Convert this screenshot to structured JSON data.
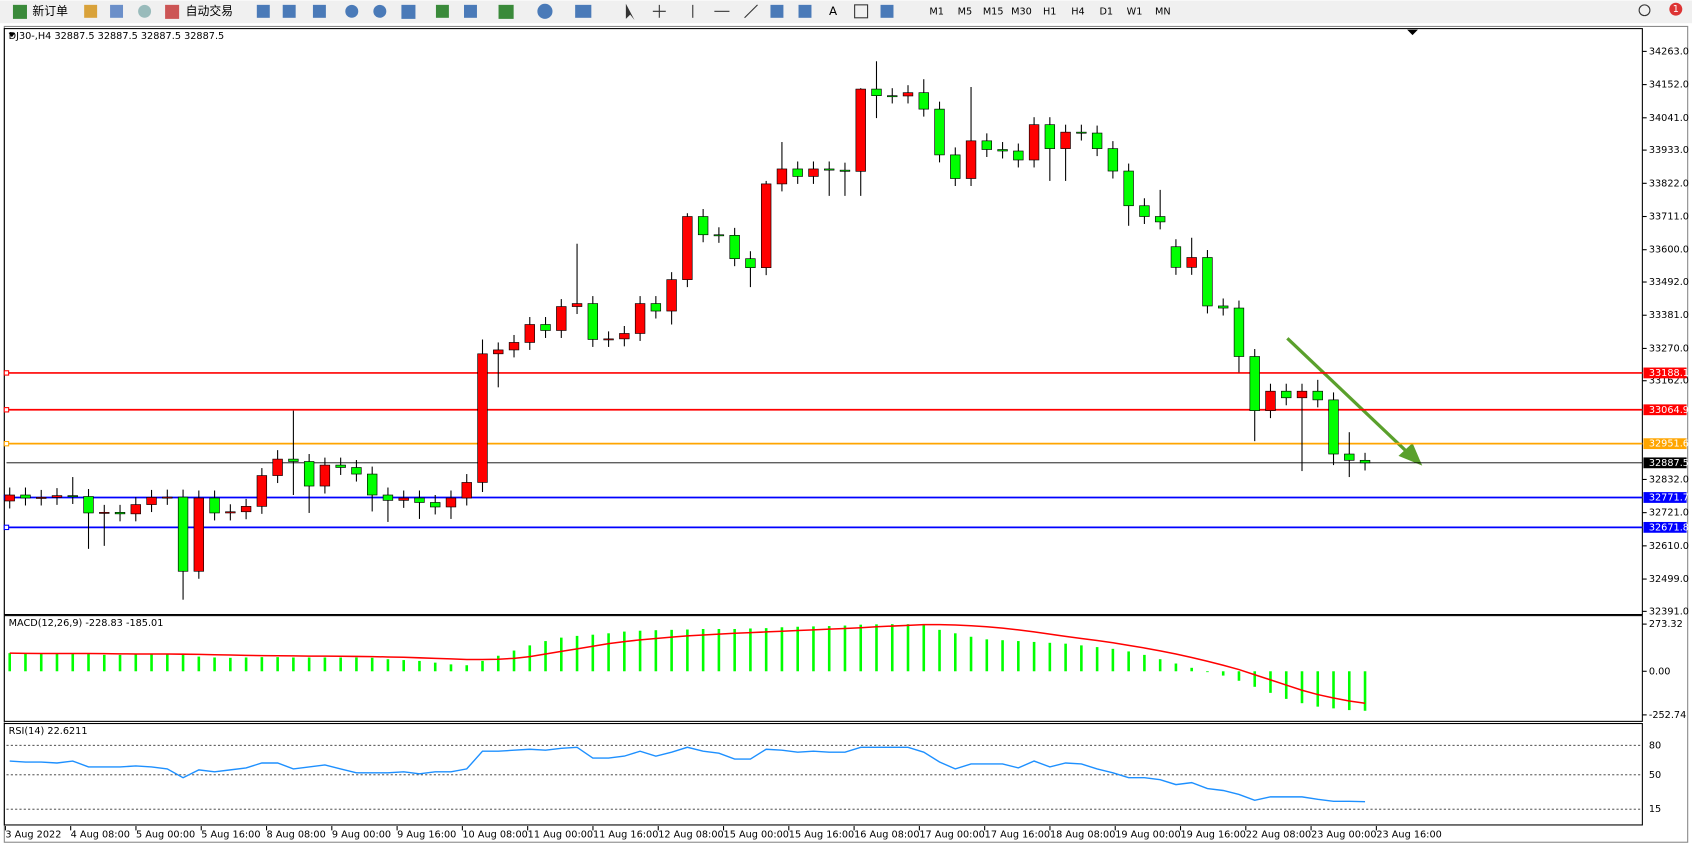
{
  "toolbar": {
    "new_order": "新订单",
    "auto_trading": "自动交易",
    "text_tool": "A",
    "timeframes": [
      "M1",
      "M5",
      "M15",
      "M30",
      "H1",
      "H4",
      "D1",
      "W1",
      "MN"
    ],
    "badge": 1
  },
  "chart_data": [
    {
      "type": "candlestick",
      "title": "DJ30-,H4  32887.5 32887.5 32887.5 32887.5",
      "up_color": "#ff0000",
      "down_color": "#00ff00",
      "open": [
        32760,
        32780,
        32770,
        32772,
        32778,
        32775,
        32720,
        32722,
        32717,
        32748,
        32772,
        32773,
        32525,
        32770,
        32720,
        32724,
        32742,
        32845,
        32900,
        32892,
        32810,
        32880,
        32872,
        32850,
        32780,
        32762,
        32770,
        32755,
        32740,
        32770,
        32822,
        33252,
        33265,
        33290,
        33350,
        33330,
        33410,
        33420,
        33300,
        33302,
        33320,
        33420,
        33395,
        33500,
        33711,
        33650,
        33648,
        33570,
        33540,
        33820,
        33870,
        33845,
        33870,
        33866,
        33862,
        34137,
        34115,
        34114,
        34125,
        34070,
        33917,
        33838,
        33964,
        33935,
        33930,
        33900,
        34018,
        33938,
        33993,
        33990,
        33938,
        33863,
        33747,
        33711,
        33610,
        33541,
        33574,
        33412,
        33405,
        33243,
        33062,
        33127,
        33105,
        33127,
        33098,
        32917,
        32896
      ],
      "high": [
        32805,
        32805,
        32797,
        32803,
        32840,
        32800,
        32747,
        32747,
        32773,
        32797,
        32798,
        32798,
        32795,
        32795,
        32749,
        32767,
        32870,
        32930,
        33062,
        32917,
        32905,
        32905,
        32897,
        32875,
        32805,
        32795,
        32795,
        32780,
        32795,
        32850,
        33300,
        33290,
        33315,
        33375,
        33375,
        33435,
        33620,
        33445,
        33327,
        33345,
        33445,
        33445,
        33525,
        33722,
        33736,
        33675,
        33673,
        33595,
        33830,
        33960,
        33895,
        33895,
        33895,
        33891,
        34140,
        34230,
        34140,
        34150,
        34170,
        34095,
        33942,
        34144,
        33989,
        33960,
        33955,
        34043,
        34043,
        34018,
        34018,
        34015,
        33963,
        33888,
        33772,
        33800,
        33635,
        33640,
        33599,
        33437,
        33430,
        33268,
        33152,
        33152,
        33152,
        33165,
        33123,
        32990,
        32921
      ],
      "low": [
        32735,
        32745,
        32745,
        32747,
        32750,
        32600,
        32610,
        32692,
        32692,
        32723,
        32747,
        32430,
        32500,
        32695,
        32695,
        32699,
        32717,
        32820,
        32780,
        32720,
        32785,
        32847,
        32825,
        32725,
        32690,
        32737,
        32700,
        32715,
        32700,
        32745,
        32790,
        33140,
        33240,
        33265,
        33305,
        33305,
        33385,
        33275,
        33275,
        33277,
        33295,
        33370,
        33350,
        33475,
        33625,
        33623,
        33545,
        33475,
        33515,
        33795,
        33820,
        33820,
        33780,
        33780,
        33780,
        34040,
        34089,
        34089,
        34045,
        33892,
        33813,
        33813,
        33910,
        33905,
        33875,
        33875,
        33830,
        33830,
        33965,
        33913,
        33838,
        33680,
        33686,
        33668,
        33516,
        33516,
        33387,
        33380,
        33190,
        32960,
        33037,
        33080,
        32860,
        33073,
        32880,
        32840,
        32862
      ],
      "close": [
        32780,
        32770,
        32772,
        32778,
        32775,
        32720,
        32722,
        32717,
        32748,
        32772,
        32773,
        32525,
        32770,
        32720,
        32724,
        32742,
        32845,
        32900,
        32892,
        32810,
        32880,
        32872,
        32850,
        32780,
        32762,
        32770,
        32755,
        32740,
        32770,
        32822,
        33252,
        33265,
        33290,
        33350,
        33330,
        33410,
        33420,
        33300,
        33302,
        33320,
        33420,
        33395,
        33500,
        33711,
        33650,
        33648,
        33570,
        33540,
        33820,
        33870,
        33845,
        33870,
        33866,
        33862,
        34137,
        34115,
        34114,
        34125,
        34070,
        33917,
        33838,
        33964,
        33935,
        33930,
        33900,
        34018,
        33938,
        33993,
        33990,
        33938,
        33863,
        33747,
        33711,
        33693,
        33541,
        33574,
        33412,
        33405,
        33243,
        33062,
        33127,
        33105,
        33127,
        33098,
        32917,
        32896,
        32887.5
      ],
      "ylim": [
        32384,
        34332
      ],
      "yticks": [
        {
          "value": 34263,
          "label": "34263.0"
        },
        {
          "value": 34152,
          "label": "34152.0"
        },
        {
          "value": 34041,
          "label": "34041.0"
        },
        {
          "value": 33933,
          "label": "33933.0"
        },
        {
          "value": 33822,
          "label": "33822.0"
        },
        {
          "value": 33711,
          "label": "33711.0"
        },
        {
          "value": 33600,
          "label": "33600.0"
        },
        {
          "value": 33492,
          "label": "33492.0"
        },
        {
          "value": 33381,
          "label": "33381.0"
        },
        {
          "value": 33270,
          "label": "33270.0"
        },
        {
          "value": 33162,
          "label": "33162.0"
        },
        {
          "value": 32832,
          "label": "32832.0"
        },
        {
          "value": 32721,
          "label": "32721.0"
        },
        {
          "value": 32610,
          "label": "32610.0"
        },
        {
          "value": 32499,
          "label": "32499.0"
        },
        {
          "value": 32391,
          "label": "32391.0"
        }
      ],
      "levels": [
        {
          "value": 33188.1,
          "color": "#ff0000"
        },
        {
          "value": 33064.9,
          "color": "#ff0000"
        },
        {
          "value": 32951.6,
          "color": "#ffa500"
        },
        {
          "value": 32887.5,
          "color": "#000000"
        },
        {
          "value": 32771.7,
          "color": "#0000ff"
        },
        {
          "value": 32671.8,
          "color": "#0000ff"
        }
      ],
      "x_labels": [
        "3 Aug 2022",
        "4 Aug 08:00",
        "5 Aug 00:00",
        "5 Aug 16:00",
        "8 Aug 08:00",
        "9 Aug 00:00",
        "9 Aug 16:00",
        "10 Aug 08:00",
        "11 Aug 00:00",
        "11 Aug 16:00",
        "12 Aug 08:00",
        "15 Aug 00:00",
        "15 Aug 16:00",
        "16 Aug 08:00",
        "17 Aug 00:00",
        "17 Aug 16:00",
        "18 Aug 08:00",
        "19 Aug 00:00",
        "19 Aug 16:00",
        "22 Aug 08:00",
        "23 Aug 00:00",
        "23 Aug 16:00"
      ]
    },
    {
      "type": "macd",
      "title": "MACD(12,26,9) -228.83 -185.01",
      "color": "#00ff00",
      "signal_color": "#ff0000",
      "histogram": [
        105,
        100,
        100,
        103,
        105,
        100,
        95,
        95,
        98,
        100,
        102,
        100,
        85,
        80,
        78,
        80,
        82,
        82,
        80,
        80,
        80,
        80,
        80,
        78,
        70,
        65,
        60,
        50,
        40,
        35,
        60,
        90,
        120,
        150,
        175,
        195,
        205,
        212,
        220,
        230,
        235,
        238,
        240,
        242,
        245,
        245,
        245,
        248,
        250,
        255,
        258,
        260,
        262,
        265,
        270,
        272,
        273,
        273,
        270,
        240,
        220,
        200,
        185,
        180,
        175,
        170,
        165,
        160,
        150,
        140,
        130,
        115,
        95,
        70,
        45,
        20,
        -5,
        -25,
        -55,
        -90,
        -125,
        -160,
        -185,
        -205,
        -215,
        -225,
        -228.83
      ],
      "signal": [
        105,
        104,
        103,
        103,
        103,
        103,
        102,
        101,
        100,
        100,
        100,
        99,
        98,
        96,
        94,
        92,
        91,
        90,
        89,
        88,
        88,
        87,
        86,
        85,
        83,
        81,
        78,
        75,
        72,
        68,
        68,
        70,
        75,
        85,
        100,
        115,
        130,
        145,
        160,
        172,
        182,
        190,
        198,
        205,
        210,
        215,
        220,
        224,
        228,
        232,
        236,
        240,
        244,
        248,
        252,
        258,
        262,
        266,
        270,
        270,
        268,
        264,
        258,
        250,
        240,
        228,
        215,
        202,
        190,
        178,
        165,
        150,
        135,
        118,
        100,
        80,
        58,
        35,
        10,
        -20,
        -50,
        -80,
        -110,
        -135,
        -155,
        -172,
        -185.01
      ],
      "ylim": [
        -284,
        310
      ],
      "yticks": [
        273.32,
        {
          "value": 0,
          "label": "0.00"
        },
        -252.74
      ]
    },
    {
      "type": "rsi",
      "title": "RSI(14) 22.6211",
      "color": "#1e90ff",
      "values": [
        64,
        63,
        63,
        62,
        64,
        58,
        58,
        58,
        59,
        58,
        56,
        47,
        55,
        53,
        55,
        57,
        62,
        62,
        56,
        58,
        60,
        56,
        52,
        52,
        52,
        53,
        51,
        53,
        53,
        56,
        74,
        74,
        75,
        76,
        75,
        77,
        78,
        67,
        67,
        69,
        74,
        69,
        73,
        78,
        74,
        72,
        66,
        66,
        76,
        75,
        73,
        74,
        73,
        73,
        78,
        78,
        78,
        78,
        73,
        63,
        56,
        61,
        61,
        61,
        57,
        64,
        58,
        62,
        61,
        56,
        52,
        47,
        47,
        45,
        40,
        42,
        36,
        34,
        30,
        24,
        27.5,
        27.5,
        27.5,
        25,
        23,
        23,
        22.6211
      ],
      "ylim": [
        0,
        100
      ],
      "yticks": [
        80,
        50,
        15
      ]
    }
  ]
}
